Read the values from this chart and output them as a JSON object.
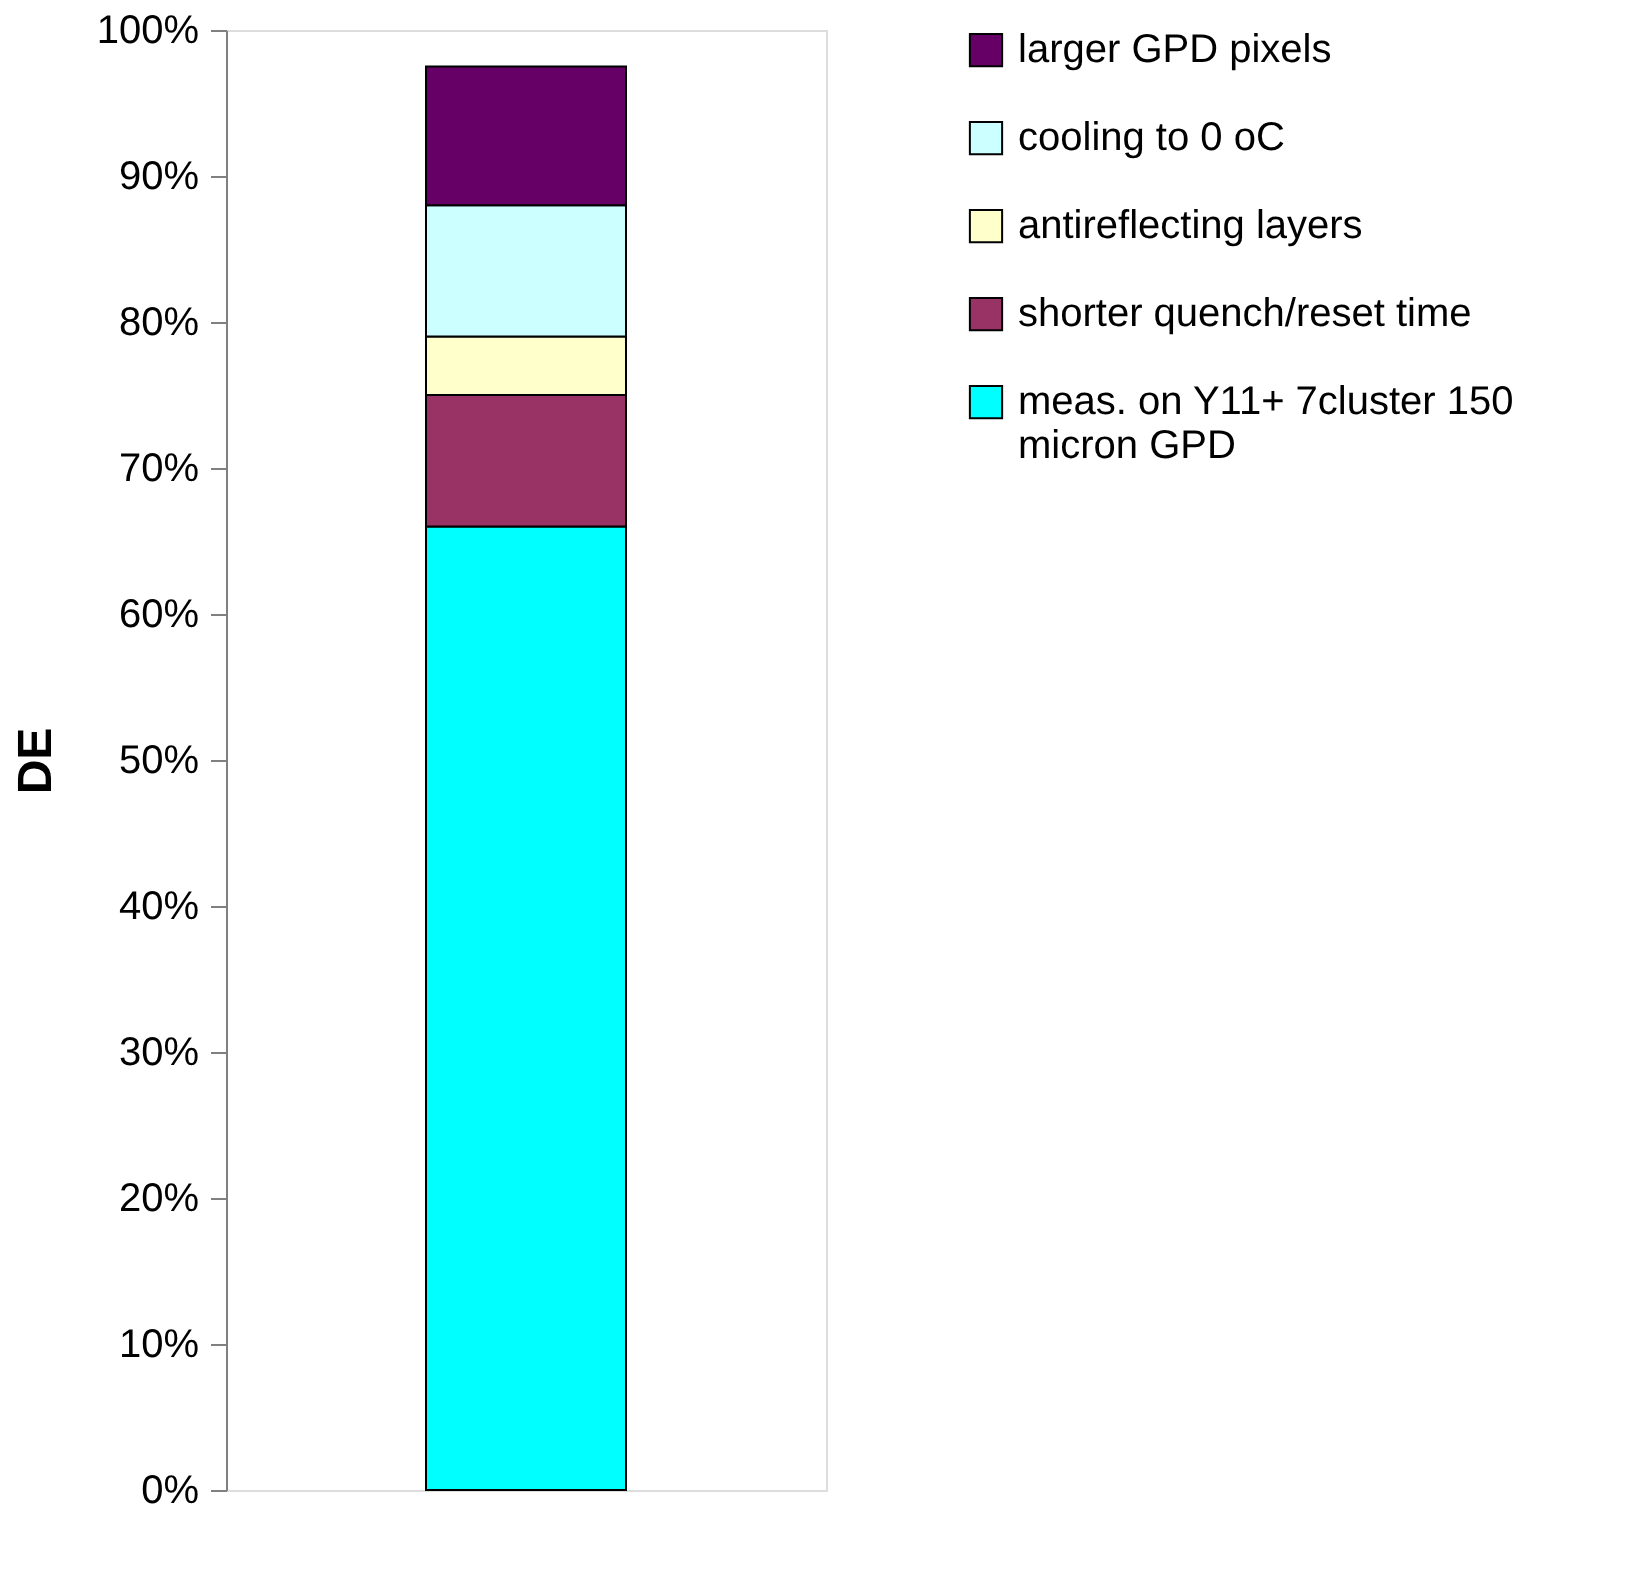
{
  "chart_data": {
    "type": "bar",
    "stacked": true,
    "ylabel": "DE",
    "categories": [
      null
    ],
    "series": [
      {
        "name": "meas. on Y11+ 7cluster 150 micron GPD",
        "color": "#00ffff",
        "values": [
          66
        ]
      },
      {
        "name": "shorter quench/reset time",
        "color": "#993366",
        "values": [
          9
        ]
      },
      {
        "name": "antireflecting layers",
        "color": "#ffffcc",
        "values": [
          4
        ]
      },
      {
        "name": "cooling to 0 oC",
        "color": "#ccffff",
        "values": [
          9
        ]
      },
      {
        "name": "larger GPD pixels",
        "color": "#660066",
        "values": [
          9.5
        ]
      }
    ],
    "ylim": [
      0,
      100
    ],
    "yticks": [
      {
        "value": 0,
        "label": "0%"
      },
      {
        "value": 10,
        "label": "10%"
      },
      {
        "value": 20,
        "label": "20%"
      },
      {
        "value": 30,
        "label": "30%"
      },
      {
        "value": 40,
        "label": "40%"
      },
      {
        "value": 50,
        "label": "50%"
      },
      {
        "value": 60,
        "label": "60%"
      },
      {
        "value": 70,
        "label": "70%"
      },
      {
        "value": 80,
        "label": "80%"
      },
      {
        "value": 90,
        "label": "90%"
      },
      {
        "value": 100,
        "label": "100%"
      }
    ],
    "grid": false,
    "legend": "right",
    "tick_labels": "y"
  }
}
